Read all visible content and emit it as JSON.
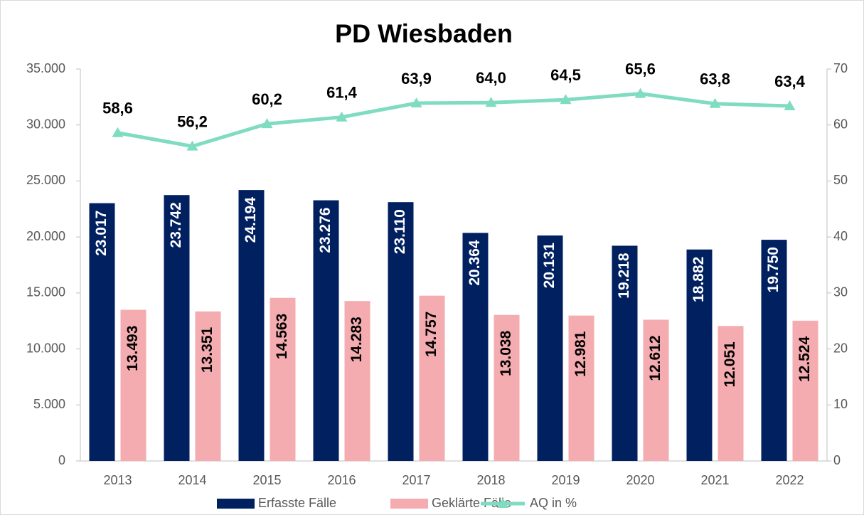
{
  "chart_data": {
    "type": "bar-line",
    "title": "PD Wiesbaden",
    "categories": [
      "2013",
      "2014",
      "2015",
      "2016",
      "2017",
      "2018",
      "2019",
      "2020",
      "2021",
      "2022"
    ],
    "series": [
      {
        "name": "Erfasste Fälle",
        "type": "bar",
        "color": "#002060",
        "values": [
          23017,
          23742,
          24194,
          23276,
          23110,
          20364,
          20131,
          19218,
          18882,
          19750
        ],
        "value_labels": [
          "23.017",
          "23.742",
          "24.194",
          "23.276",
          "23.110",
          "20.364",
          "20.131",
          "19.218",
          "18.882",
          "19.750"
        ]
      },
      {
        "name": "Geklärte Fälle",
        "type": "bar",
        "color": "#f4acb0",
        "values": [
          13493,
          13351,
          14563,
          14283,
          14757,
          13038,
          12981,
          12612,
          12051,
          12524
        ],
        "value_labels": [
          "13.493",
          "13.351",
          "14.563",
          "14.283",
          "14.757",
          "13.038",
          "12.981",
          "12.612",
          "12.051",
          "12.524"
        ]
      },
      {
        "name": "AQ in %",
        "type": "line",
        "axis": "y2",
        "color": "#7fdcc0",
        "values": [
          58.6,
          56.2,
          60.2,
          61.4,
          63.9,
          64.0,
          64.5,
          65.6,
          63.8,
          63.4
        ],
        "value_labels": [
          "58,6",
          "56,2",
          "60,2",
          "61,4",
          "63,9",
          "64,0",
          "64,5",
          "65,6",
          "63,8",
          "63,4"
        ]
      }
    ],
    "ylim": [
      0,
      35000
    ],
    "yticks": [
      0,
      {
        "value": 5000,
        "label": "5.000"
      },
      {
        "value": 10000,
        "label": "10.000"
      },
      {
        "value": 15000,
        "label": "15.000"
      },
      {
        "value": 20000,
        "label": "20.000"
      },
      {
        "value": 25000,
        "label": "25.000"
      },
      {
        "value": 30000,
        "label": "30.000"
      },
      {
        "value": 35000,
        "label": "35.000"
      }
    ],
    "y2lim": [
      0,
      70
    ],
    "y2ticks": [
      0,
      10,
      20,
      30,
      40,
      50,
      60,
      70
    ],
    "legend": "bottom"
  }
}
